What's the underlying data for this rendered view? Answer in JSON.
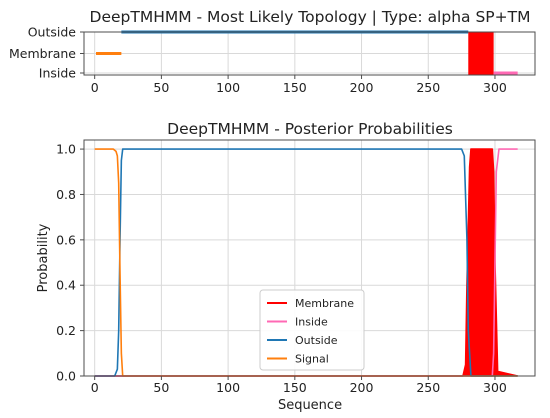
{
  "chart_data": [
    {
      "type": "line",
      "title": "DeepTMHMM - Most Likely Topology | Type: alpha SP+TM",
      "xlabel": "",
      "ylabel": "",
      "xlim": [
        -8,
        330
      ],
      "xticks": [
        "0",
        "50",
        "100",
        "150",
        "200",
        "250",
        "300"
      ],
      "categories": [
        "Inside",
        "Membrane",
        "Outside"
      ],
      "grid": true,
      "segments": [
        {
          "label": "Signal",
          "color": "#ff7f0e",
          "start": 1,
          "end": 20,
          "level": "Membrane"
        },
        {
          "label": "Outside",
          "color": "#1f77b4",
          "start": 20,
          "end": 280,
          "level": "Outside"
        },
        {
          "label": "Membrane",
          "color": "#ff0000",
          "start": 280,
          "end": 299,
          "level": "Membrane"
        },
        {
          "label": "Inside",
          "color": "#ff69b4",
          "start": 299,
          "end": 317,
          "level": "Inside"
        }
      ]
    },
    {
      "type": "line",
      "title": "DeepTMHMM - Posterior Probabilities",
      "xlabel": "Sequence",
      "ylabel": "Probability",
      "xlim": [
        -8,
        330
      ],
      "ylim": [
        0,
        1.04
      ],
      "xticks": [
        "0",
        "50",
        "100",
        "150",
        "200",
        "250",
        "300"
      ],
      "yticks": [
        "0.0",
        "0.2",
        "0.4",
        "0.6",
        "0.8",
        "1.0"
      ],
      "grid": true,
      "legend_position": "lower-center",
      "legend": [
        "Membrane",
        "Inside",
        "Outside",
        "Signal"
      ],
      "series": [
        {
          "name": "Membrane",
          "color": "#ff0000",
          "fill": true,
          "x": [
            0,
            276,
            278,
            279,
            281,
            282,
            298,
            299,
            300,
            302,
            317
          ],
          "values": [
            0,
            0,
            0.05,
            0.4,
            0.92,
            1.0,
            1.0,
            0.9,
            0.5,
            0.02,
            0
          ]
        },
        {
          "name": "Inside",
          "color": "#ff69b4",
          "x": [
            0,
            298,
            299,
            300,
            301,
            303,
            317
          ],
          "values": [
            0,
            0,
            0.1,
            0.5,
            0.9,
            1.0,
            1.0
          ]
        },
        {
          "name": "Outside",
          "color": "#1f77b4",
          "x": [
            0,
            15,
            17,
            18,
            19,
            20,
            21,
            275,
            277,
            279,
            280,
            282,
            317
          ],
          "values": [
            0,
            0,
            0.03,
            0.2,
            0.6,
            0.95,
            1.0,
            1.0,
            0.97,
            0.6,
            0.2,
            0,
            0
          ]
        },
        {
          "name": "Signal",
          "color": "#ff7f0e",
          "x": [
            0,
            14,
            16,
            17,
            18,
            19,
            20,
            21,
            317
          ],
          "values": [
            1.0,
            1.0,
            0.99,
            0.97,
            0.85,
            0.45,
            0.1,
            0,
            0
          ]
        }
      ]
    }
  ]
}
